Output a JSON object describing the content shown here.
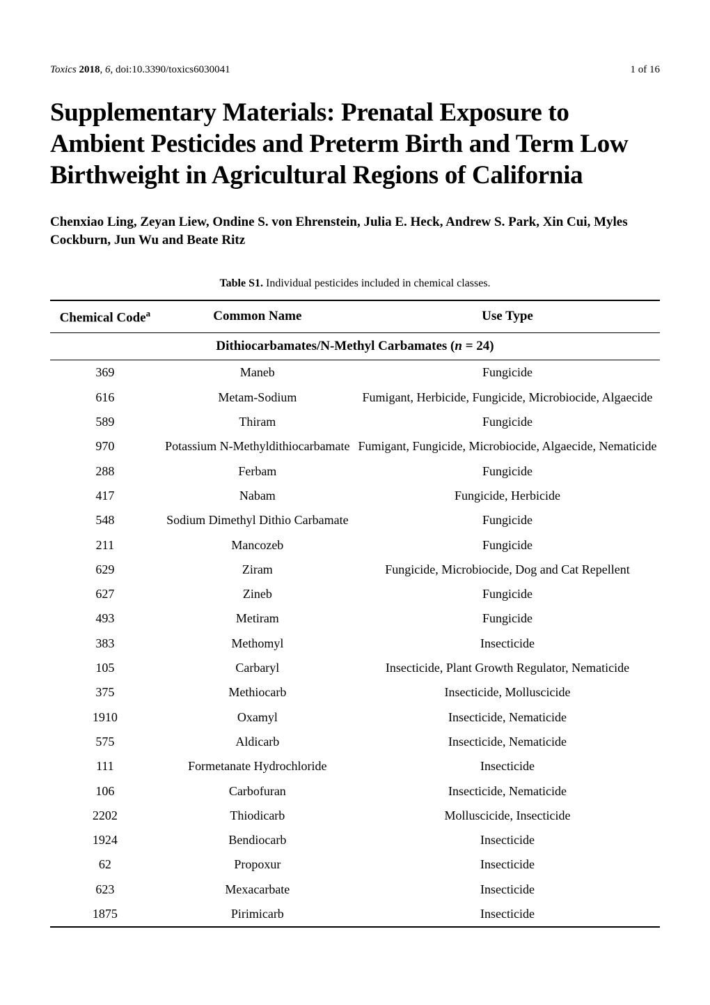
{
  "header": {
    "journal": "Toxics",
    "year_bold": "2018",
    "vol_issue": "6",
    "doi": "doi:10.3390/toxics6030041",
    "page_label": "1 of 16"
  },
  "title": "Supplementary Materials:   Prenatal Exposure to Ambient Pesticides and Preterm Birth and Term Low Birthweight in Agricultural Regions of California",
  "authors": "Chenxiao Ling, Zeyan Liew, Ondine S. von Ehrenstein, Julia E. Heck, Andrew S. Park, Xin Cui, Myles Cockburn, Jun Wu and Beate Ritz",
  "table": {
    "caption_label": "Table S1.",
    "caption_text": "Individual pesticides included in chemical classes.",
    "columns": {
      "code_label": "Chemical Code",
      "code_sup": "a",
      "name_label": "Common Name",
      "use_label": "Use Type"
    },
    "section": {
      "title_prefix": "Dithiocarbamates/N-Methyl Carbamates (",
      "n_ital": "n",
      "n_value": " = 24)"
    },
    "rows": [
      {
        "code": "369",
        "name": "Maneb",
        "use": "Fungicide"
      },
      {
        "code": "616",
        "name": "Metam-Sodium",
        "use": "Fumigant, Herbicide, Fungicide, Microbiocide, Algaecide"
      },
      {
        "code": "589",
        "name": "Thiram",
        "use": "Fungicide"
      },
      {
        "code": "970",
        "name": "Potassium N-Methyldithiocarbamate",
        "use": "Fumigant, Fungicide, Microbiocide, Algaecide, Nematicide"
      },
      {
        "code": "288",
        "name": "Ferbam",
        "use": "Fungicide"
      },
      {
        "code": "417",
        "name": "Nabam",
        "use": "Fungicide, Herbicide"
      },
      {
        "code": "548",
        "name": "Sodium Dimethyl Dithio Carbamate",
        "use": "Fungicide"
      },
      {
        "code": "211",
        "name": "Mancozeb",
        "use": "Fungicide"
      },
      {
        "code": "629",
        "name": "Ziram",
        "use": "Fungicide, Microbiocide, Dog and Cat Repellent"
      },
      {
        "code": "627",
        "name": "Zineb",
        "use": "Fungicide"
      },
      {
        "code": "493",
        "name": "Metiram",
        "use": "Fungicide"
      },
      {
        "code": "383",
        "name": "Methomyl",
        "use": "Insecticide"
      },
      {
        "code": "105",
        "name": "Carbaryl",
        "use": "Insecticide, Plant Growth Regulator, Nematicide"
      },
      {
        "code": "375",
        "name": "Methiocarb",
        "use": "Insecticide, Molluscicide"
      },
      {
        "code": "1910",
        "name": "Oxamyl",
        "use": "Insecticide, Nematicide"
      },
      {
        "code": "575",
        "name": "Aldicarb",
        "use": "Insecticide, Nematicide"
      },
      {
        "code": "111",
        "name": "Formetanate Hydrochloride",
        "use": "Insecticide"
      },
      {
        "code": "106",
        "name": "Carbofuran",
        "use": "Insecticide, Nematicide"
      },
      {
        "code": "2202",
        "name": "Thiodicarb",
        "use": "Molluscicide, Insecticide"
      },
      {
        "code": "1924",
        "name": "Bendiocarb",
        "use": "Insecticide"
      },
      {
        "code": "62",
        "name": "Propoxur",
        "use": "Insecticide"
      },
      {
        "code": "623",
        "name": "Mexacarbate",
        "use": "Insecticide"
      },
      {
        "code": "1875",
        "name": "Pirimicarb",
        "use": "Insecticide"
      }
    ]
  }
}
